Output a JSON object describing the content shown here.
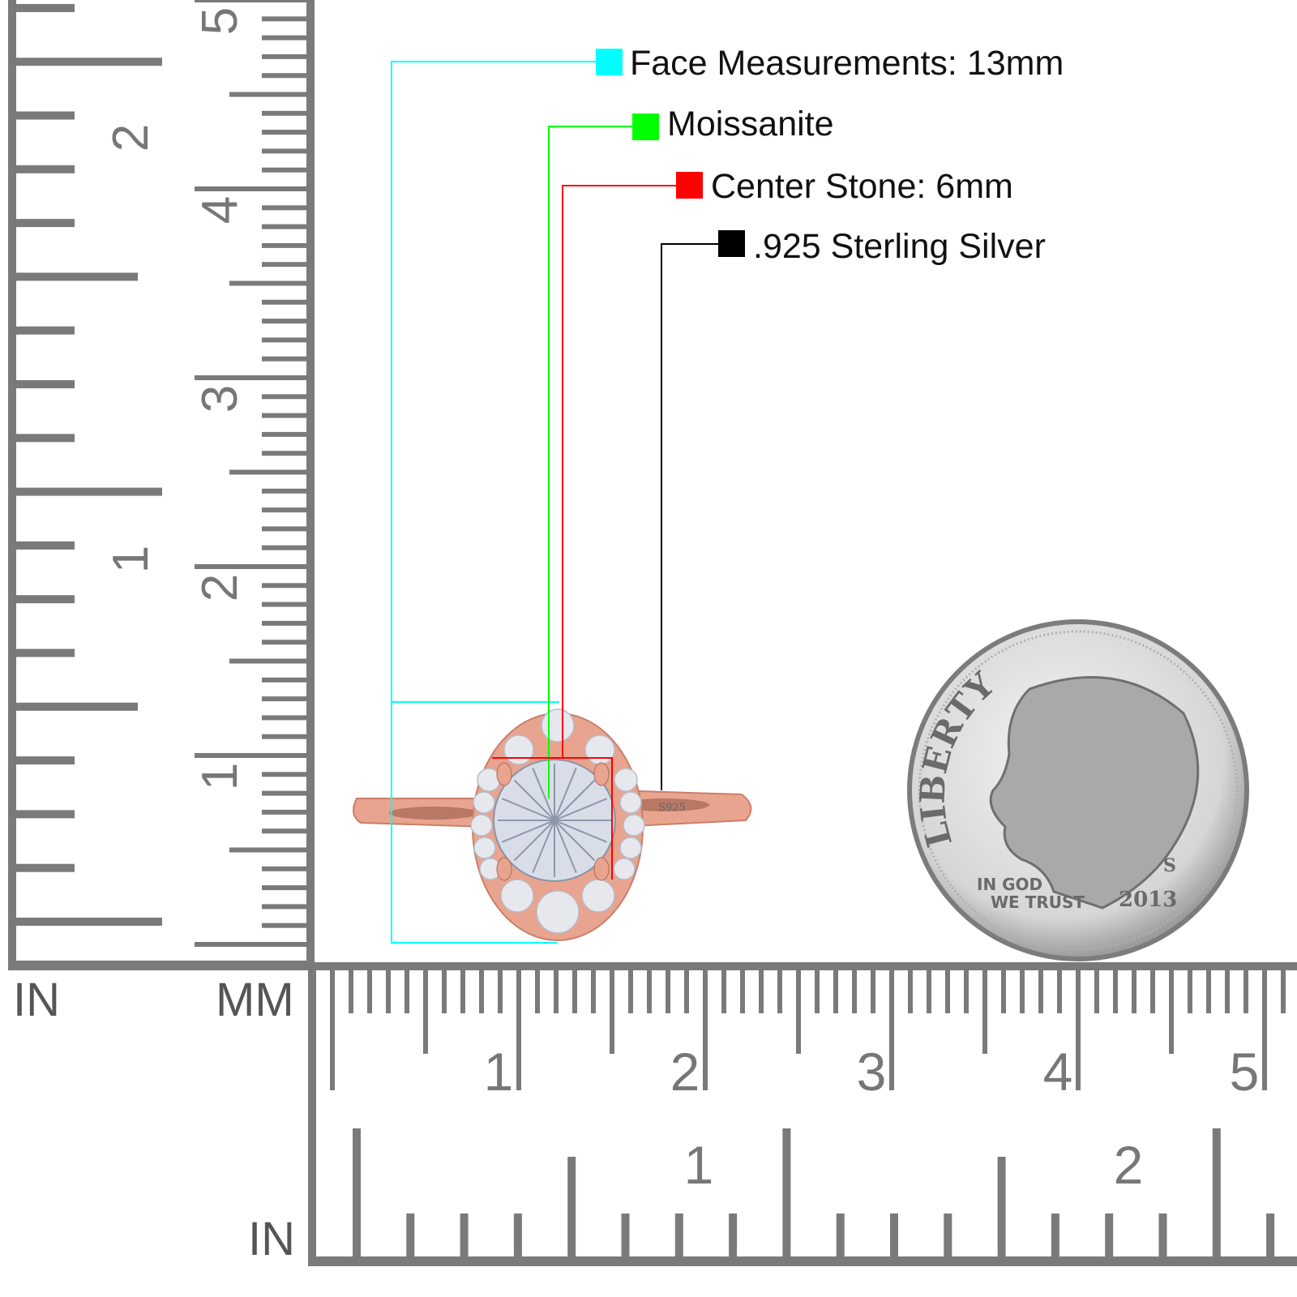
{
  "legend": [
    {
      "label": "Face Measurements: 13mm",
      "color": "#00ffff"
    },
    {
      "label": "Moissanite",
      "color": "#00ff00"
    },
    {
      "label": "Center Stone: 6mm",
      "color": "#ff0000"
    },
    {
      "label": ".925 Sterling Silver",
      "color": "#000000"
    }
  ],
  "rulers": {
    "color": "#7a7a7a",
    "left_inch_unit": "IN",
    "left_mm_unit": "MM",
    "bottom_inch_unit": "IN",
    "vertical_cm_labels": [
      "1",
      "2",
      "3",
      "4",
      "5"
    ],
    "vertical_inch_labels": [
      "1",
      "2"
    ],
    "horizontal_cm_labels": [
      "1",
      "2",
      "3",
      "4",
      "5"
    ],
    "horizontal_inch_labels": [
      "1",
      "2"
    ]
  },
  "ring": {
    "metal_color": "#e8a48e",
    "stamp": "S925"
  },
  "coin": {
    "top_text": "LIBERTY",
    "motto_line1": "IN GOD",
    "motto_line2": "WE TRUST",
    "year": "2013",
    "mint_mark": "S"
  }
}
